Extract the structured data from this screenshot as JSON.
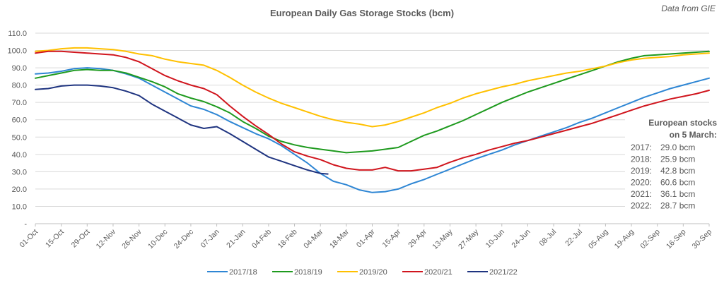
{
  "chart_data": {
    "type": "line",
    "title": "European Daily Gas Storage Stocks (bcm)",
    "source_note": "Data from GIE",
    "xlabel": "",
    "ylabel": "",
    "ylim": [
      0,
      110
    ],
    "y_ticks": [
      {
        "value": 0,
        "label": "-"
      },
      {
        "value": 10,
        "label": "10.0"
      },
      {
        "value": 20,
        "label": "20.0"
      },
      {
        "value": 30,
        "label": "30.0"
      },
      {
        "value": 40,
        "label": "40.0"
      },
      {
        "value": 50,
        "label": "50.0"
      },
      {
        "value": 60,
        "label": "60.0"
      },
      {
        "value": 70,
        "label": "70.0"
      },
      {
        "value": 80,
        "label": "80.0"
      },
      {
        "value": 90,
        "label": "90.0"
      },
      {
        "value": 100,
        "label": "100.0"
      },
      {
        "value": 110,
        "label": "110.0"
      }
    ],
    "x_unit": "day of gas year (0 = 01-Oct)",
    "xlim": [
      0,
      364
    ],
    "x_ticks": [
      {
        "day": 0,
        "label": "01-Oct"
      },
      {
        "day": 14,
        "label": "15-Oct"
      },
      {
        "day": 28,
        "label": "29-Oct"
      },
      {
        "day": 42,
        "label": "12-Nov"
      },
      {
        "day": 56,
        "label": "26-Nov"
      },
      {
        "day": 70,
        "label": "10-Dec"
      },
      {
        "day": 84,
        "label": "24-Dec"
      },
      {
        "day": 98,
        "label": "07-Jan"
      },
      {
        "day": 112,
        "label": "21-Jan"
      },
      {
        "day": 126,
        "label": "04-Feb"
      },
      {
        "day": 140,
        "label": "18-Feb"
      },
      {
        "day": 154,
        "label": "04-Mar"
      },
      {
        "day": 168,
        "label": "18-Mar"
      },
      {
        "day": 182,
        "label": "01-Apr"
      },
      {
        "day": 196,
        "label": "15-Apr"
      },
      {
        "day": 210,
        "label": "29-Apr"
      },
      {
        "day": 224,
        "label": "13-May"
      },
      {
        "day": 238,
        "label": "27-May"
      },
      {
        "day": 252,
        "label": "10-Jun"
      },
      {
        "day": 266,
        "label": "24-Jun"
      },
      {
        "day": 280,
        "label": "08-Jul"
      },
      {
        "day": 294,
        "label": "22-Jul"
      },
      {
        "day": 308,
        "label": "05-Aug"
      },
      {
        "day": 322,
        "label": "19-Aug"
      },
      {
        "day": 336,
        "label": "02-Sep"
      },
      {
        "day": 350,
        "label": "16-Sep"
      },
      {
        "day": 364,
        "label": "30-Sep"
      }
    ],
    "grid": true,
    "legend_position": "bottom",
    "series": [
      {
        "name": "2017/18",
        "color": "#2e86d4",
        "points": [
          [
            0,
            86.5
          ],
          [
            7,
            87
          ],
          [
            14,
            88
          ],
          [
            21,
            89.5
          ],
          [
            28,
            90
          ],
          [
            35,
            89.5
          ],
          [
            42,
            88.5
          ],
          [
            49,
            86.5
          ],
          [
            56,
            84
          ],
          [
            63,
            80
          ],
          [
            70,
            76
          ],
          [
            77,
            72
          ],
          [
            84,
            68
          ],
          [
            91,
            66
          ],
          [
            98,
            63
          ],
          [
            105,
            59
          ],
          [
            112,
            55.5
          ],
          [
            119,
            52
          ],
          [
            126,
            49
          ],
          [
            133,
            45
          ],
          [
            140,
            40
          ],
          [
            147,
            35
          ],
          [
            154,
            29
          ],
          [
            161,
            24.5
          ],
          [
            168,
            22.5
          ],
          [
            175,
            19.5
          ],
          [
            182,
            18
          ],
          [
            189,
            18.5
          ],
          [
            196,
            20
          ],
          [
            203,
            23
          ],
          [
            210,
            25.5
          ],
          [
            217,
            28.5
          ],
          [
            224,
            31.5
          ],
          [
            231,
            34.5
          ],
          [
            238,
            37.5
          ],
          [
            245,
            40
          ],
          [
            252,
            42.5
          ],
          [
            259,
            45.5
          ],
          [
            266,
            48
          ],
          [
            273,
            50.5
          ],
          [
            280,
            53
          ],
          [
            287,
            55.5
          ],
          [
            294,
            58.5
          ],
          [
            301,
            61
          ],
          [
            308,
            64
          ],
          [
            315,
            67
          ],
          [
            322,
            70
          ],
          [
            329,
            73
          ],
          [
            336,
            75.5
          ],
          [
            343,
            78
          ],
          [
            350,
            80
          ],
          [
            357,
            82
          ],
          [
            364,
            84
          ]
        ]
      },
      {
        "name": "2018/19",
        "color": "#1e9a1e",
        "points": [
          [
            0,
            84
          ],
          [
            7,
            85.5
          ],
          [
            14,
            87
          ],
          [
            21,
            88.5
          ],
          [
            28,
            89
          ],
          [
            35,
            88.5
          ],
          [
            42,
            88.5
          ],
          [
            49,
            87
          ],
          [
            56,
            84.5
          ],
          [
            63,
            82
          ],
          [
            70,
            79
          ],
          [
            77,
            75
          ],
          [
            84,
            72.5
          ],
          [
            91,
            70.5
          ],
          [
            98,
            67.5
          ],
          [
            105,
            64
          ],
          [
            112,
            59
          ],
          [
            119,
            55
          ],
          [
            126,
            50.5
          ],
          [
            133,
            47.5
          ],
          [
            140,
            45.5
          ],
          [
            147,
            44
          ],
          [
            154,
            43
          ],
          [
            161,
            42
          ],
          [
            168,
            41
          ],
          [
            175,
            41.5
          ],
          [
            182,
            42
          ],
          [
            189,
            43
          ],
          [
            196,
            44
          ],
          [
            203,
            47.5
          ],
          [
            210,
            51
          ],
          [
            217,
            53.5
          ],
          [
            224,
            56.5
          ],
          [
            231,
            59.5
          ],
          [
            238,
            63
          ],
          [
            245,
            66.5
          ],
          [
            252,
            70
          ],
          [
            259,
            73
          ],
          [
            266,
            76
          ],
          [
            273,
            78.5
          ],
          [
            280,
            81
          ],
          [
            287,
            83.5
          ],
          [
            294,
            86
          ],
          [
            301,
            88.5
          ],
          [
            308,
            91
          ],
          [
            315,
            93.5
          ],
          [
            322,
            95.5
          ],
          [
            329,
            97
          ],
          [
            336,
            97.5
          ],
          [
            343,
            98
          ],
          [
            350,
            98.5
          ],
          [
            357,
            99
          ],
          [
            364,
            99.5
          ]
        ]
      },
      {
        "name": "2019/20",
        "color": "#ffc000",
        "points": [
          [
            0,
            99.5
          ],
          [
            7,
            100
          ],
          [
            14,
            101
          ],
          [
            21,
            101.5
          ],
          [
            28,
            101.5
          ],
          [
            35,
            101
          ],
          [
            42,
            100.5
          ],
          [
            49,
            99.5
          ],
          [
            56,
            98
          ],
          [
            63,
            97
          ],
          [
            70,
            95
          ],
          [
            77,
            93.5
          ],
          [
            84,
            92.5
          ],
          [
            91,
            91.5
          ],
          [
            98,
            88.5
          ],
          [
            105,
            84.5
          ],
          [
            112,
            80
          ],
          [
            119,
            76
          ],
          [
            126,
            72.5
          ],
          [
            133,
            69.5
          ],
          [
            140,
            67
          ],
          [
            147,
            64.5
          ],
          [
            154,
            62
          ],
          [
            161,
            60
          ],
          [
            168,
            58.5
          ],
          [
            175,
            57.5
          ],
          [
            182,
            56
          ],
          [
            189,
            57
          ],
          [
            196,
            59
          ],
          [
            203,
            61.5
          ],
          [
            210,
            64
          ],
          [
            217,
            67
          ],
          [
            224,
            69.5
          ],
          [
            231,
            72.5
          ],
          [
            238,
            75
          ],
          [
            245,
            77
          ],
          [
            252,
            79
          ],
          [
            259,
            80.5
          ],
          [
            266,
            82.5
          ],
          [
            273,
            84
          ],
          [
            280,
            85.5
          ],
          [
            287,
            87
          ],
          [
            294,
            88
          ],
          [
            301,
            89.5
          ],
          [
            308,
            91
          ],
          [
            315,
            93
          ],
          [
            322,
            94.5
          ],
          [
            329,
            95.5
          ],
          [
            336,
            96
          ],
          [
            343,
            96.5
          ],
          [
            350,
            97.5
          ],
          [
            357,
            98
          ],
          [
            364,
            98.5
          ]
        ]
      },
      {
        "name": "2020/21",
        "color": "#d0151d",
        "points": [
          [
            0,
            98.5
          ],
          [
            7,
            99.5
          ],
          [
            14,
            99.5
          ],
          [
            21,
            99
          ],
          [
            28,
            98.5
          ],
          [
            35,
            98
          ],
          [
            42,
            97.5
          ],
          [
            49,
            96
          ],
          [
            56,
            93.5
          ],
          [
            63,
            89.5
          ],
          [
            70,
            85.5
          ],
          [
            77,
            82.5
          ],
          [
            84,
            80
          ],
          [
            91,
            78
          ],
          [
            98,
            74.5
          ],
          [
            105,
            68
          ],
          [
            112,
            62
          ],
          [
            119,
            56.5
          ],
          [
            126,
            51.5
          ],
          [
            133,
            46
          ],
          [
            140,
            41.5
          ],
          [
            147,
            39
          ],
          [
            154,
            37
          ],
          [
            161,
            34
          ],
          [
            168,
            32
          ],
          [
            175,
            31
          ],
          [
            182,
            31
          ],
          [
            189,
            32.5
          ],
          [
            196,
            30.5
          ],
          [
            203,
            30.5
          ],
          [
            210,
            31.5
          ],
          [
            217,
            32.5
          ],
          [
            224,
            35.5
          ],
          [
            231,
            38
          ],
          [
            238,
            40
          ],
          [
            245,
            42.5
          ],
          [
            252,
            44.5
          ],
          [
            259,
            46.5
          ],
          [
            266,
            48
          ],
          [
            273,
            50
          ],
          [
            280,
            52
          ],
          [
            287,
            54
          ],
          [
            294,
            56
          ],
          [
            301,
            58
          ],
          [
            308,
            60.5
          ],
          [
            315,
            63
          ],
          [
            322,
            65.5
          ],
          [
            329,
            68
          ],
          [
            336,
            70
          ],
          [
            343,
            72
          ],
          [
            350,
            73.5
          ],
          [
            357,
            75
          ],
          [
            364,
            77
          ]
        ]
      },
      {
        "name": "2021/22",
        "color": "#1f3480",
        "points": [
          [
            0,
            77.5
          ],
          [
            7,
            78
          ],
          [
            14,
            79.5
          ],
          [
            21,
            80
          ],
          [
            28,
            80
          ],
          [
            35,
            79.5
          ],
          [
            42,
            78.5
          ],
          [
            49,
            76.5
          ],
          [
            56,
            74
          ],
          [
            63,
            69
          ],
          [
            70,
            65
          ],
          [
            77,
            61
          ],
          [
            84,
            57
          ],
          [
            91,
            55
          ],
          [
            98,
            56
          ],
          [
            105,
            52
          ],
          [
            112,
            47.5
          ],
          [
            119,
            43
          ],
          [
            126,
            38.5
          ],
          [
            133,
            36
          ],
          [
            140,
            33.5
          ],
          [
            147,
            31
          ],
          [
            154,
            29
          ],
          [
            158,
            28.7
          ]
        ]
      }
    ],
    "annotation": {
      "heading_line1": "European stocks",
      "heading_line2": "on 5 March:",
      "entries": [
        {
          "year": "2017:",
          "value": "29.0 bcm"
        },
        {
          "year": "2018:",
          "value": "25.9 bcm"
        },
        {
          "year": "2019:",
          "value": "42.8 bcm"
        },
        {
          "year": "2020:",
          "value": "60.6 bcm"
        },
        {
          "year": "2021:",
          "value": "36.1 bcm"
        },
        {
          "year": "2022:",
          "value": "28.7 bcm"
        }
      ]
    }
  }
}
